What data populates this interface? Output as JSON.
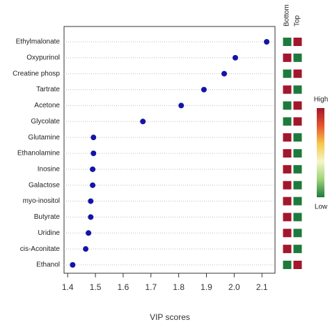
{
  "chart_data": {
    "type": "dot",
    "xlabel": "VIP scores",
    "categories": [
      "Ethylmalonate",
      "Oxypurinol",
      "Creatine phosp",
      "Tartrate",
      "Acetone",
      "Glycolate",
      "Glutamine",
      "Ethanolamine",
      "Inosine",
      "Galactose",
      "myo-inositol",
      "Butyrate",
      "Uridine",
      "cis-Aconitate",
      "Ethanol"
    ],
    "values": [
      2.117,
      2.004,
      1.964,
      1.891,
      1.809,
      1.671,
      1.493,
      1.493,
      1.49,
      1.49,
      1.483,
      1.483,
      1.475,
      1.465,
      1.418
    ],
    "color": "#1414a8",
    "xlim": [
      1.387,
      2.147
    ],
    "xticks": [
      1.4,
      1.5,
      1.6,
      1.7,
      1.8,
      1.9,
      {
        "value": 2,
        "label": "2.0"
      },
      2.1
    ],
    "grid": true,
    "heatmap": {
      "columns": [
        "Bottom",
        "Top"
      ],
      "cells": [
        [
          "#1e7a3c",
          "#a3162c"
        ],
        [
          "#a3162c",
          "#1e7a3c"
        ],
        [
          "#1e7a3c",
          "#a3162c"
        ],
        [
          "#a3162c",
          "#1e7a3c"
        ],
        [
          "#1e7a3c",
          "#a3162c"
        ],
        [
          "#1e7a3c",
          "#a3162c"
        ],
        [
          "#a3162c",
          "#1e7a3c"
        ],
        [
          "#a3162c",
          "#1e7a3c"
        ],
        [
          "#a3162c",
          "#1e7a3c"
        ],
        [
          "#a3162c",
          "#1e7a3c"
        ],
        [
          "#a3162c",
          "#1e7a3c"
        ],
        [
          "#a3162c",
          "#1e7a3c"
        ],
        [
          "#a3162c",
          "#1e7a3c"
        ],
        [
          "#a3162c",
          "#1e7a3c"
        ],
        [
          "#1e7a3c",
          "#a3162c"
        ]
      ],
      "legend_high": "High",
      "legend_low": "Low",
      "legend_colors": [
        "#a3162c",
        "#e8552e",
        "#f6c84a",
        "#f5f5c8",
        "#9fd37a",
        "#1e7a3c"
      ]
    }
  }
}
